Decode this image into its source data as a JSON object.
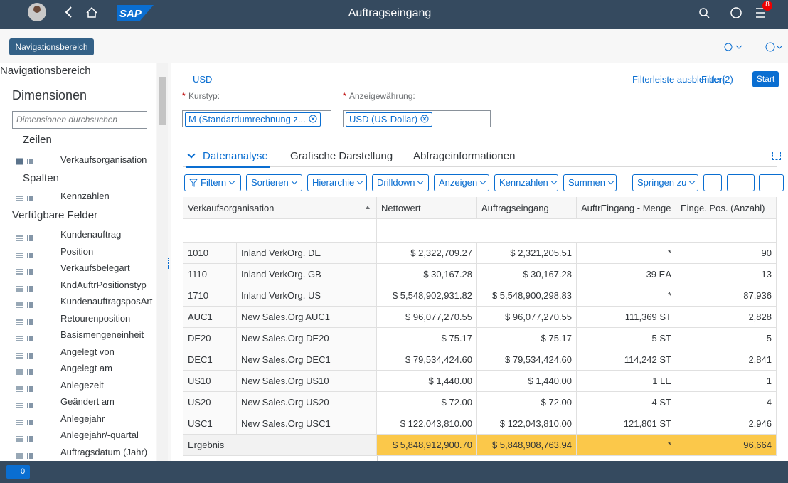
{
  "shell": {
    "title": "Auftragseingang",
    "badge": "8"
  },
  "nav_button": "Navigationsbereich",
  "nav": {
    "header": "Navigationsbereich",
    "dimensions_title": "Dimensionen",
    "search_placeholder": "Dimensionen durchsuchen",
    "rows_label": "Zeilen",
    "rows": [
      "Verkaufsorganisation"
    ],
    "columns_label": "Spalten",
    "columns": [
      "Kennzahlen"
    ],
    "available_label": "Verfügbare Felder",
    "available": [
      "Kundenauftrag",
      "Position",
      "Verkaufsbelegart",
      "KndAuftrPositionstyp",
      "KundenauftragsposArt",
      "Retourenposition",
      "Basismengeneinheit",
      "Angelegt von",
      "Angelegt am",
      "Anlegezeit",
      "Geändert am",
      "Anlegejahr",
      "Anlegejahr/-quartal",
      "Auftragsdatum (Jahr)"
    ]
  },
  "filter": {
    "currency": "USD",
    "hide": "Filterleiste ausblenden",
    "filter": "Filter(2)",
    "start": "Start",
    "fields": [
      {
        "marker": "*",
        "label": "Kurstyp:",
        "value": "M (Standardumrechnung z..."
      },
      {
        "marker": "*",
        "label": "Anzeigewährung:",
        "value": "USD (US-Dollar)"
      }
    ]
  },
  "tabs": [
    "Datenanalyse",
    "Grafische Darstellung",
    "Abfrageinformationen"
  ],
  "toolbar": [
    "Filtern",
    "Sortieren",
    "Hierarchie",
    "Drilldown",
    "Anzeigen",
    "Kennzahlen",
    "Summen",
    "Springen zu"
  ],
  "table": {
    "header": [
      "Verkaufsorganisation",
      "Nettowert",
      "Auftragseingang",
      "AuftrEingang - Menge",
      "Einge. Pos. (Anzahl)"
    ],
    "rows": [
      [
        "1010",
        "Inland VerkOrg. DE",
        "$ 2,322,709.27",
        "$ 2,321,205.51",
        "*",
        "90"
      ],
      [
        "1110",
        "Inland VerkOrg. GB",
        "$ 30,167.28",
        "$ 30,167.28",
        "39 EA",
        "13"
      ],
      [
        "1710",
        "Inland VerkOrg. US",
        "$ 5,548,902,931.82",
        "$ 5,548,900,298.83",
        "*",
        "87,936"
      ],
      [
        "AUC1",
        "New Sales.Org AUC1",
        "$ 96,077,270.55",
        "$ 96,077,270.55",
        "111,369 ST",
        "2,828"
      ],
      [
        "DE20",
        "New Sales.Org DE20",
        "$ 75.17",
        "$ 75.17",
        "5 ST",
        "5"
      ],
      [
        "DEC1",
        "New Sales.Org DEC1",
        "$ 79,534,424.60",
        "$ 79,534,424.60",
        "114,242 ST",
        "2,841"
      ],
      [
        "US10",
        "New Sales.Org US10",
        "$ 1,440.00",
        "$ 1,440.00",
        "1 LE",
        "1"
      ],
      [
        "US20",
        "New Sales.Org US20",
        "$ 72.00",
        "$ 72.00",
        "4 ST",
        "4"
      ],
      [
        "USC1",
        "New Sales.Org USC1",
        "$ 122,043,810.00",
        "$ 122,043,810.00",
        "121,801 ST",
        "2,946"
      ]
    ],
    "total": [
      "Ergebnis",
      "$ 5,848,912,900.70",
      "$ 5,848,908,763.94",
      "*",
      "96,664"
    ]
  },
  "footer": {
    "count": "0"
  }
}
